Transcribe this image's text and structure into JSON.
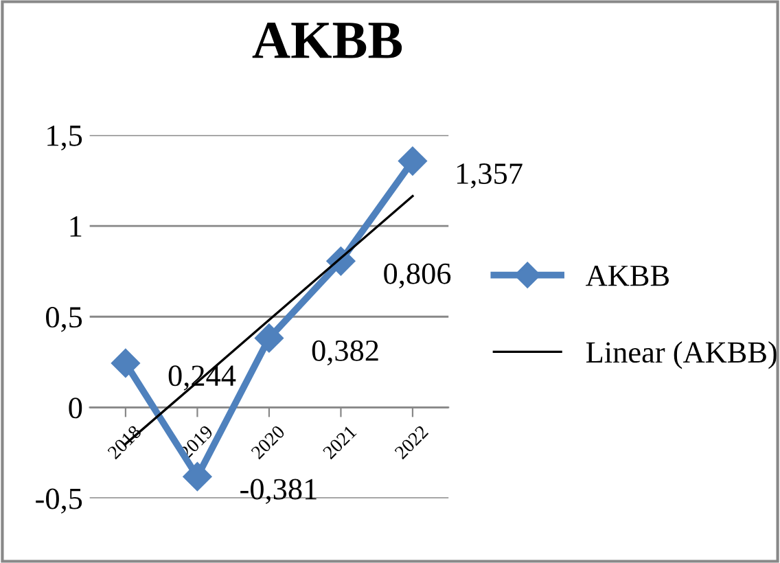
{
  "chart_data": {
    "type": "line",
    "title": "AKBB",
    "categories": [
      "2018",
      "2019",
      "2020",
      "2021",
      "2022"
    ],
    "series": [
      {
        "name": "AKBB",
        "color": "#4f81bd",
        "values": [
          0.244,
          -0.381,
          0.382,
          0.806,
          1.357
        ],
        "marker": "diamond",
        "value_labels": [
          "0,244",
          "-0,381",
          "0,382",
          "0,806",
          "1,357"
        ]
      },
      {
        "name": "Linear (AKBB)",
        "type": "line",
        "color": "#000000",
        "values": [
          -0.201,
          0.14,
          0.482,
          0.823,
          1.164
        ],
        "marker": "none"
      }
    ],
    "ylim": [
      -0.5,
      1.5
    ],
    "yticks": [
      {
        "value": -0.5,
        "label": "-0,5"
      },
      0,
      {
        "value": 0.5,
        "label": "0,5"
      },
      1,
      {
        "value": 1.5,
        "label": "1,5"
      }
    ],
    "grid": "y",
    "legend": "right"
  }
}
